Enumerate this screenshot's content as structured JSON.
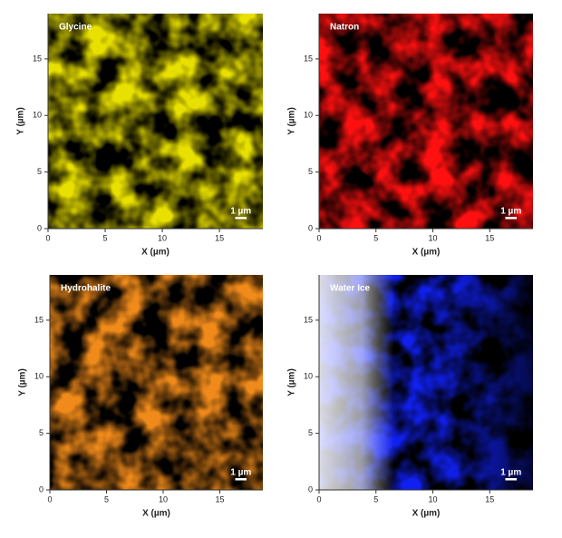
{
  "chart_data": [
    {
      "type": "map",
      "title": "Glycine",
      "color": "#e8e000",
      "xlabel": "X (µm)",
      "ylabel": "Y (µm)",
      "xlim": [
        0,
        18.8
      ],
      "ylim": [
        0,
        19
      ],
      "xticks": [
        0,
        5,
        10,
        15
      ],
      "yticks": [
        0,
        5,
        10,
        15
      ],
      "scale_bar": {
        "label": "1 µm",
        "length": 1
      }
    },
    {
      "type": "map",
      "title": "Natron",
      "color": "#ff1010",
      "xlabel": "X (µm)",
      "ylabel": "Y (µm)",
      "xlim": [
        0,
        18.8
      ],
      "ylim": [
        0,
        19
      ],
      "xticks": [
        0,
        5,
        10,
        15
      ],
      "yticks": [
        0,
        5,
        10,
        15
      ],
      "scale_bar": {
        "label": "1 µm",
        "length": 1
      }
    },
    {
      "type": "map",
      "title": "Hydrohalite",
      "color": "#f08a1a",
      "xlabel": "X (µm)",
      "ylabel": "Y (µm)",
      "xlim": [
        0,
        18.8
      ],
      "ylim": [
        0,
        19
      ],
      "xticks": [
        0,
        5,
        10,
        15
      ],
      "yticks": [
        0,
        5,
        10,
        15
      ],
      "scale_bar": {
        "label": "1 µm",
        "length": 1
      }
    },
    {
      "type": "map",
      "title": "Water Ice",
      "color": "#1020f0",
      "xlabel": "X (µm)",
      "ylabel": "Y (µm)",
      "xlim": [
        0,
        18.8
      ],
      "ylim": [
        0,
        19
      ],
      "xticks": [
        0,
        5,
        10,
        15
      ],
      "yticks": [
        0,
        5,
        10,
        15
      ],
      "scale_bar": {
        "label": "1 µm",
        "length": 1
      }
    }
  ]
}
